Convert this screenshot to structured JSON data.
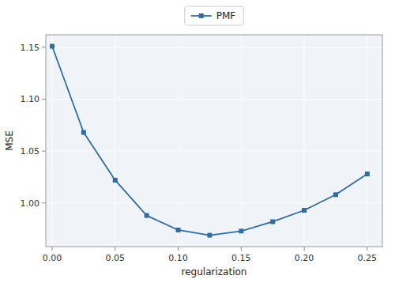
{
  "chart_data": {
    "type": "line",
    "x": [
      0,
      0.025,
      0.05,
      0.075,
      0.1,
      0.125,
      0.15,
      0.175,
      0.2,
      0.225,
      0.25
    ],
    "series": [
      {
        "name": "PMF",
        "color": "#2e6da4",
        "marker": "square",
        "values": [
          1.151,
          1.068,
          1.022,
          0.988,
          0.974,
          0.969,
          0.973,
          0.982,
          0.993,
          1.008,
          1.028
        ]
      }
    ],
    "xlabel": "regularization",
    "ylabel": "MSE",
    "xlim": [
      -0.005,
      0.262
    ],
    "ylim": [
      0.958,
      1.162
    ],
    "xticks": [
      {
        "value": 0,
        "label": "0.00"
      },
      {
        "value": 0.05,
        "label": "0.05"
      },
      {
        "value": 0.1,
        "label": "0.10"
      },
      {
        "value": 0.15,
        "label": "0.15"
      },
      {
        "value": 0.2,
        "label": "0.20"
      },
      {
        "value": 0.25,
        "label": "0.25"
      }
    ],
    "yticks": [
      {
        "value": 1.0,
        "label": "1.00"
      },
      {
        "value": 1.05,
        "label": "1.05"
      },
      {
        "value": 1.1,
        "label": "1.10"
      },
      {
        "value": 1.15,
        "label": "1.15"
      }
    ],
    "grid": true,
    "legend": "top"
  }
}
